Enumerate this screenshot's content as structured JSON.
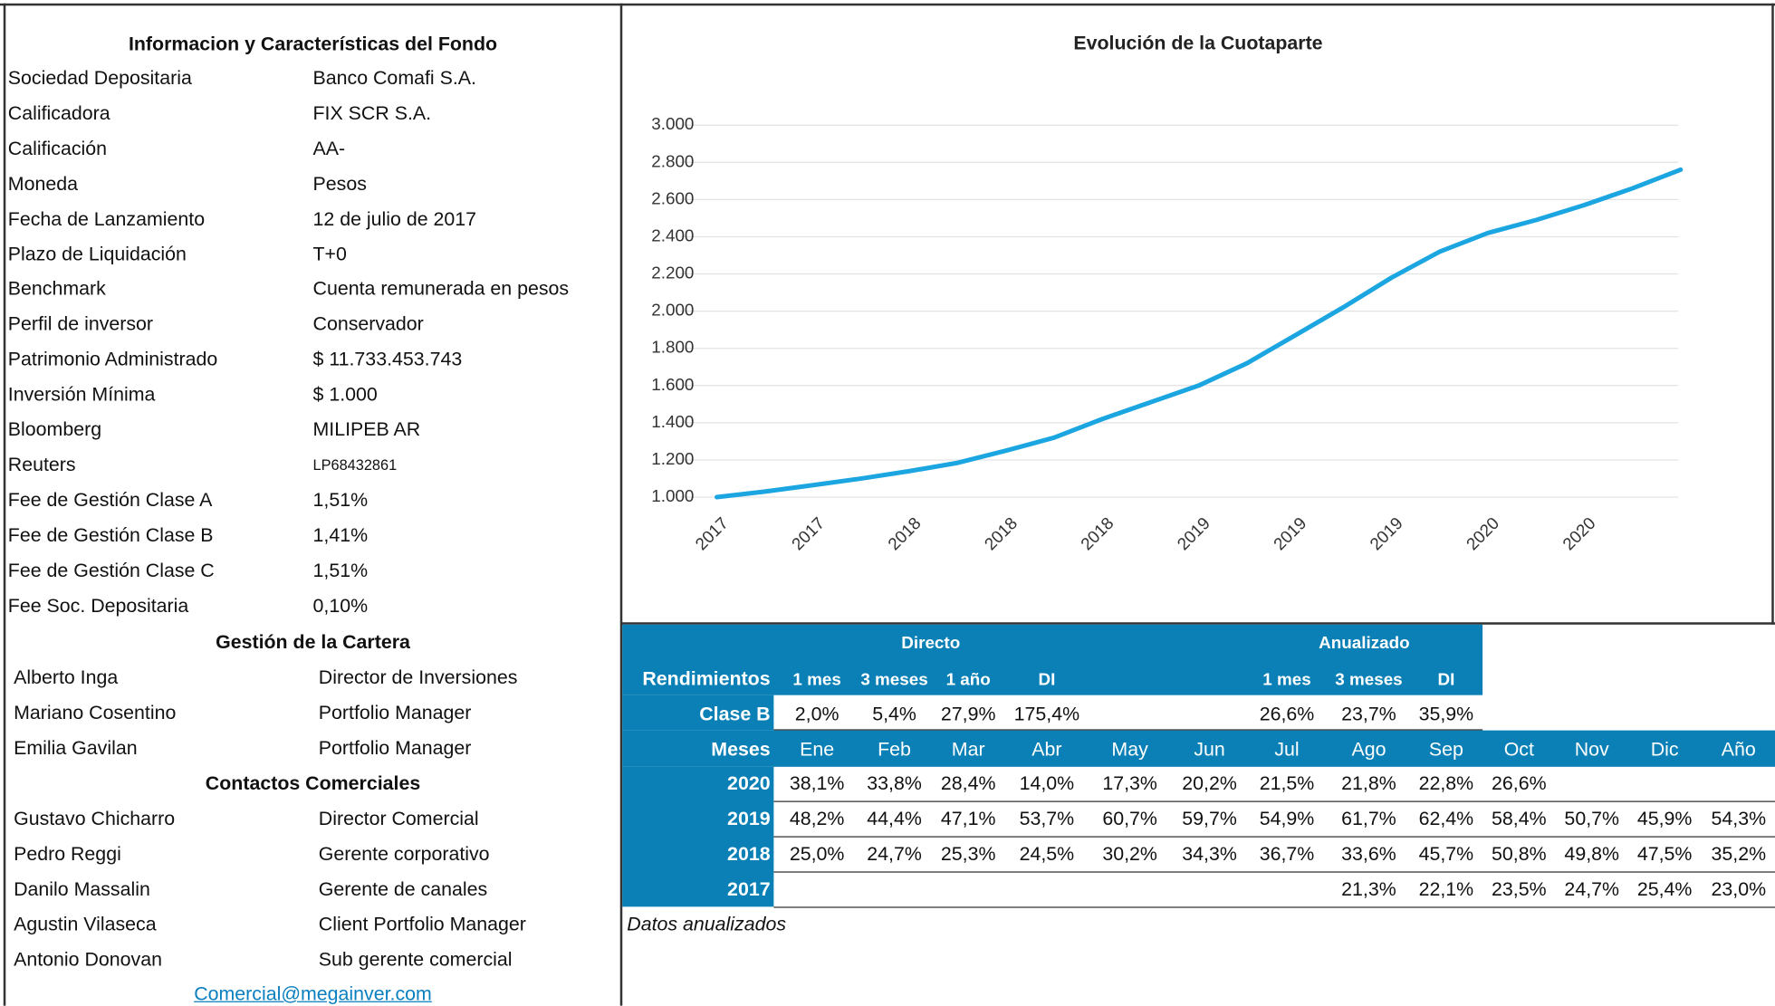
{
  "info": {
    "title": "Informacion y Características del Fondo",
    "rows": [
      [
        "Sociedad Depositaria",
        "Banco Comafi S.A."
      ],
      [
        "Calificadora",
        "FIX SCR S.A."
      ],
      [
        "Calificación",
        "AA-"
      ],
      [
        "Moneda",
        "Pesos"
      ],
      [
        "Fecha de Lanzamiento",
        "12 de julio de 2017"
      ],
      [
        "Plazo de Liquidación",
        "T+0"
      ],
      [
        "Benchmark",
        "Cuenta remunerada en pesos"
      ],
      [
        "Perfil de inversor",
        "Conservador"
      ],
      [
        "Patrimonio Administrado",
        "$ 11.733.453.743"
      ],
      [
        "Inversión Mínima",
        "$ 1.000"
      ],
      [
        "Bloomberg",
        "MILIPEB AR"
      ],
      [
        "Reuters",
        "LP68432861"
      ],
      [
        "Fee de Gestión Clase A",
        "1,51%"
      ],
      [
        "Fee de Gestión Clase B",
        "1,41%"
      ],
      [
        "Fee de Gestión Clase C",
        "1,51%"
      ],
      [
        "Fee Soc. Depositaria",
        "0,10%"
      ]
    ]
  },
  "team": {
    "title": "Gestión de la Cartera",
    "rows": [
      [
        "Alberto Inga",
        "Director de Inversiones"
      ],
      [
        "Mariano Cosentino",
        "Portfolio Manager"
      ],
      [
        "Emilia Gavilan",
        "Portfolio Manager"
      ]
    ]
  },
  "contacts": {
    "title": "Contactos Comerciales",
    "rows": [
      [
        "Gustavo Chicharro",
        "Director Comercial"
      ],
      [
        "Pedro Reggi",
        "Gerente corporativo"
      ],
      [
        "Danilo Massalin",
        "Gerente de canales"
      ],
      [
        "Agustin Vilaseca",
        "Client Portfolio Manager"
      ],
      [
        "Antonio Donovan",
        "Sub gerente comercial"
      ]
    ],
    "email": "Comercial@megainver.com"
  },
  "chart_data": {
    "type": "line",
    "title": "Evolución de la Cuotaparte",
    "categories": [
      "2017",
      null,
      "2017",
      null,
      "2018",
      null,
      "2018",
      null,
      "2018",
      null,
      "2019",
      null,
      "2019",
      null,
      "2019",
      null,
      "2020",
      null,
      "2020",
      null,
      null
    ],
    "series": [
      {
        "name": "Cuotaparte",
        "color": "#1ba6e1",
        "values": [
          1000,
          1030,
          1065,
          1100,
          1140,
          1185,
          1250,
          1320,
          1420,
          1510,
          1600,
          1720,
          1870,
          2020,
          2180,
          2320,
          2420,
          2490,
          2570,
          2660,
          2760
        ]
      }
    ],
    "ylim": [
      1000,
      3000
    ],
    "yticks": [
      {
        "value": 1000,
        "label": "1.000"
      },
      {
        "value": 1200,
        "label": "1.200"
      },
      {
        "value": 1400,
        "label": "1.400"
      },
      {
        "value": 1600,
        "label": "1.600"
      },
      {
        "value": 1800,
        "label": "1.800"
      },
      {
        "value": 2000,
        "label": "2.000"
      },
      {
        "value": 2200,
        "label": "2.200"
      },
      {
        "value": 2400,
        "label": "2.400"
      },
      {
        "value": 2600,
        "label": "2.600"
      },
      {
        "value": 2800,
        "label": "2.800"
      },
      {
        "value": 3000,
        "label": "3.000"
      }
    ],
    "grid": true
  },
  "returns": {
    "label": "Rendimientos",
    "directo": "Directo",
    "anualizado": "Anualizado",
    "directo_cols": [
      "1 mes",
      "3 meses",
      "1 año",
      "DI"
    ],
    "anualizado_cols": [
      "1 mes",
      "3 meses",
      "DI"
    ],
    "row": {
      "name": "Clase B",
      "directo": [
        "2,0%",
        "5,4%",
        "27,9%",
        "175,4%"
      ],
      "anualizado": [
        "26,6%",
        "23,7%",
        "35,9%"
      ]
    }
  },
  "monthly": {
    "label": "Meses",
    "months": [
      "Ene",
      "Feb",
      "Mar",
      "Abr",
      "May",
      "Jun",
      "Jul",
      "Ago",
      "Sep",
      "Oct",
      "Nov",
      "Dic",
      "Año"
    ],
    "rows": [
      {
        "year": "2020",
        "values": [
          "38,1%",
          "33,8%",
          "28,4%",
          "14,0%",
          "17,3%",
          "20,2%",
          "21,5%",
          "21,8%",
          "22,8%",
          "26,6%",
          null,
          null,
          null
        ]
      },
      {
        "year": "2019",
        "values": [
          "48,2%",
          "44,4%",
          "47,1%",
          "53,7%",
          "60,7%",
          "59,7%",
          "54,9%",
          "61,7%",
          "62,4%",
          "58,4%",
          "50,7%",
          "45,9%",
          "54,3%"
        ]
      },
      {
        "year": "2018",
        "values": [
          "25,0%",
          "24,7%",
          "25,3%",
          "24,5%",
          "30,2%",
          "34,3%",
          "36,7%",
          "33,6%",
          "45,7%",
          "50,8%",
          "49,8%",
          "47,5%",
          "35,2%"
        ]
      },
      {
        "year": "2017",
        "values": [
          null,
          null,
          null,
          null,
          null,
          null,
          null,
          "21,3%",
          "22,1%",
          "23,5%",
          "24,7%",
          "25,4%",
          "23,0%"
        ]
      }
    ]
  },
  "note": "Datos anualizados"
}
